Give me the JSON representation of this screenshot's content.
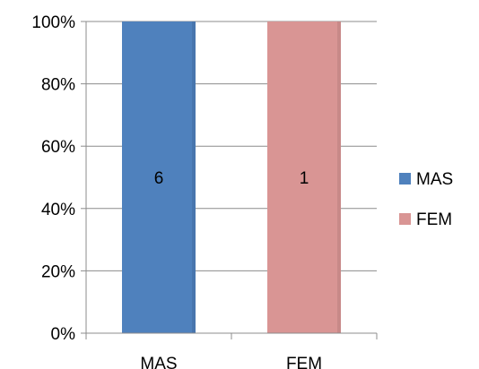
{
  "chart_data": {
    "type": "bar",
    "stacked": "percent",
    "categories": [
      "MAS",
      "FEM"
    ],
    "series": [
      {
        "name": "MAS",
        "values": [
          6,
          0
        ],
        "color": "#4f81bd",
        "labels": [
          "6",
          ""
        ]
      },
      {
        "name": "FEM",
        "values": [
          0,
          1
        ],
        "color": "#d99594",
        "labels": [
          "",
          "1"
        ]
      }
    ],
    "yticks": [
      "0%",
      "20%",
      "40%",
      "60%",
      "80%",
      "100%"
    ],
    "ylim": [
      0,
      100
    ],
    "grid": true,
    "legend": "right",
    "title": "",
    "xlabel": "",
    "ylabel": ""
  }
}
